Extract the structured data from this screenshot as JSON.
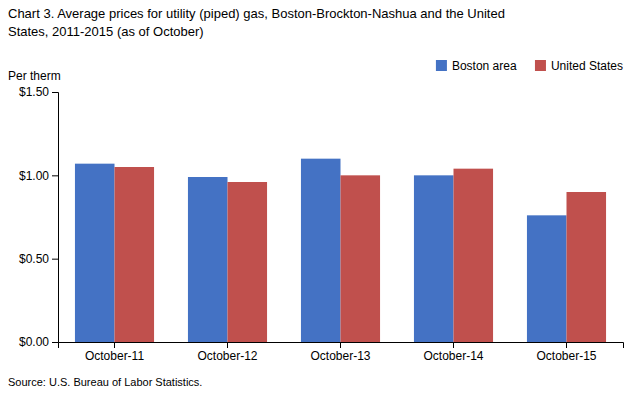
{
  "chart_data": {
    "type": "bar",
    "title": "Chart 3. Average prices for utility (piped) gas, Boston-Brockton-Nashua and the United",
    "subtitle": "States, 2011-2015 (as of October)",
    "y_label": "Per therm",
    "annotations": [
      "Source: U.S. Bureau of Labor Statistics."
    ],
    "categories": [
      "October-11",
      "October-12",
      "October-13",
      "October-14",
      "October-15"
    ],
    "series": [
      {
        "name": "Boston area",
        "color": "#4472C4",
        "values": [
          1.07,
          0.99,
          1.1,
          1.0,
          0.76
        ]
      },
      {
        "name": "United States",
        "color": "#C0504D",
        "values": [
          1.05,
          0.96,
          1.0,
          1.04,
          0.9
        ]
      }
    ],
    "ylim": [
      0.0,
      1.5
    ],
    "yticks": [
      {
        "value": 0.0,
        "label": "$0.00"
      },
      {
        "value": 0.5,
        "label": "$0.50"
      },
      {
        "value": 1.0,
        "label": "$1.00"
      },
      {
        "value": 1.5,
        "label": "$1.50"
      }
    ],
    "grid": false,
    "legend": "upper right"
  }
}
